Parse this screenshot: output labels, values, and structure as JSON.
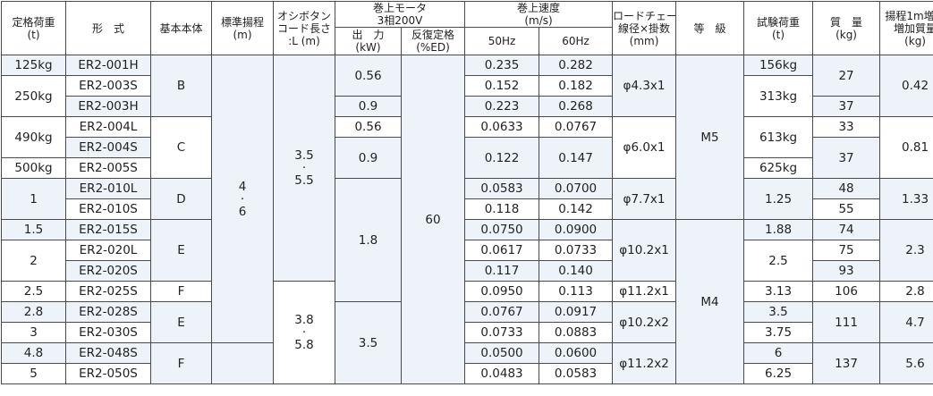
{
  "header": {
    "rated_load": "定格荷重",
    "rated_load_unit": "(t)",
    "model": "形　式",
    "body": "基本本体",
    "std_lift": "標準揚程",
    "std_lift_unit": "(m)",
    "pb_cord_1": "オシボタン",
    "pb_cord_2": "コード長さ",
    "pb_cord_3": ":L (m)",
    "motor_1": "巻上モータ",
    "motor_2": "3相200V",
    "output": "出　力",
    "output_unit": "(kW)",
    "rating": "反復定格",
    "rating_unit": "(%ED)",
    "speed_1": "巻上速度",
    "speed_2": "(m/s)",
    "hz50": "50Hz",
    "hz60": "60Hz",
    "chain_1": "ロードチェーン",
    "chain_2": "線径×掛数",
    "chain_3": "(mm)",
    "grade": "等　級",
    "test_load": "試験荷重",
    "test_load_unit": "(t)",
    "mass": "質　量",
    "mass_unit": "(kg)",
    "extra_1": "揚程1m増し",
    "extra_2": "増加質量",
    "extra_3": "(kg)"
  },
  "rows": [
    {
      "load": "125kg",
      "model": "ER2-001H",
      "s50": "0.235",
      "s60": "0.282"
    },
    {
      "load": "250kg",
      "model": "ER2-003S",
      "s50": "0.152",
      "s60": "0.182"
    },
    {
      "model": "ER2-003H",
      "s50": "0.223",
      "s60": "0.268"
    },
    {
      "load": "490kg",
      "model": "ER2-004L",
      "s50": "0.0633",
      "s60": "0.0767"
    },
    {
      "model": "ER2-004S",
      "s50": "0.122",
      "s60": "0.147"
    },
    {
      "load": "500kg",
      "model": "ER2-005S"
    },
    {
      "load": "1",
      "model": "ER2-010L",
      "s50": "0.0583",
      "s60": "0.0700"
    },
    {
      "model": "ER2-010S",
      "s50": "0.118",
      "s60": "0.142"
    },
    {
      "load": "1.5",
      "model": "ER2-015S",
      "s50": "0.0750",
      "s60": "0.0900"
    },
    {
      "load": "2",
      "model": "ER2-020L",
      "s50": "0.0617",
      "s60": "0.0733"
    },
    {
      "model": "ER2-020S",
      "s50": "0.117",
      "s60": "0.140"
    },
    {
      "load": "2.5",
      "model": "ER2-025S",
      "s50": "0.0950",
      "s60": "0.113"
    },
    {
      "load": "2.8",
      "model": "ER2-028S",
      "s50": "0.0767",
      "s60": "0.0917"
    },
    {
      "load": "3",
      "model": "ER2-030S",
      "s50": "0.0733",
      "s60": "0.0883"
    },
    {
      "load": "4.8",
      "model": "ER2-048S",
      "s50": "0.0500",
      "s60": "0.0600"
    },
    {
      "load": "5",
      "model": "ER2-050S",
      "s50": "0.0483",
      "s60": "0.0583"
    }
  ],
  "body_groups": [
    "B",
    "C",
    "D",
    "E",
    "F",
    "E",
    "F"
  ],
  "std_lift": {
    "a": "4",
    "dot": "·",
    "b": "6"
  },
  "cord": {
    "g1a": "3.5",
    "g1dot": "·",
    "g1b": "5.5",
    "g2a": "3.8",
    "g2dot": "·",
    "g2b": "5.8"
  },
  "output": [
    "0.56",
    "0.9",
    "0.56",
    "0.9",
    "1.8",
    "3.5"
  ],
  "rating": "60",
  "chain": [
    "φ4.3x1",
    "φ6.0x1",
    "φ7.7x1",
    "φ10.2x1",
    "φ11.2x1",
    "φ10.2x2",
    "φ11.2x2"
  ],
  "grade": [
    "M5",
    "M4"
  ],
  "test_load": [
    "156kg",
    "313kg",
    "613kg",
    "625kg",
    "1.25",
    "1.88",
    "2.5",
    "3.13",
    "3.5",
    "3.75",
    "6",
    "6.25"
  ],
  "mass": [
    "27",
    "37",
    "33",
    "37",
    "48",
    "55",
    "74",
    "75",
    "93",
    "106",
    "111",
    "137"
  ],
  "extra": [
    "0.42",
    "0.81",
    "1.33",
    "2.3",
    "2.8",
    "4.7",
    "5.6"
  ]
}
